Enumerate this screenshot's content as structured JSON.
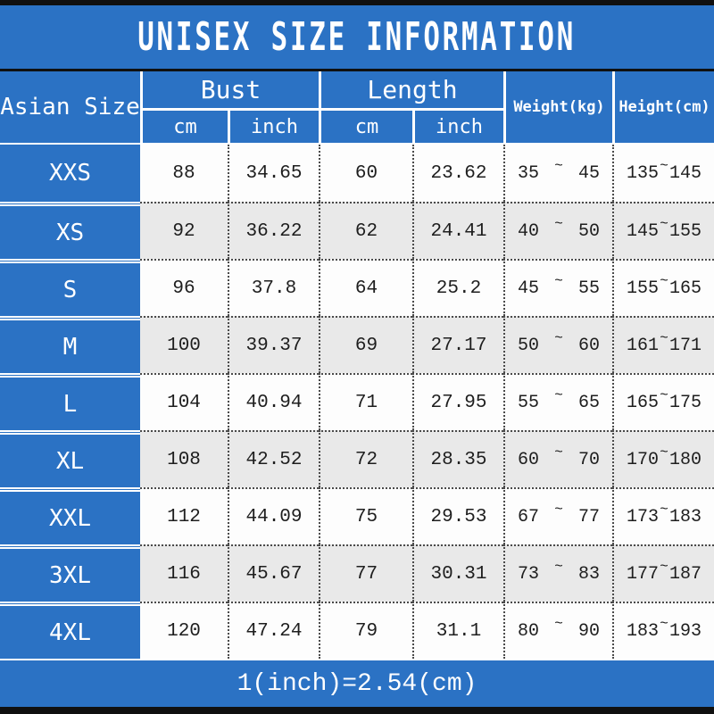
{
  "title": "UNISEX SIZE INFORMATION",
  "footer": {
    "conversion_note": "1(inch)=2.54(cm)"
  },
  "colors": {
    "banner_blue": "#2b72c4",
    "row_alt_gray": "#e9e9e9",
    "stripe_black": "#101010",
    "text_white": "#ffffff",
    "text_dark": "#1e1e1e"
  },
  "table": {
    "tilde": "~",
    "headers": {
      "size_column": "Asian Size",
      "bust_group": "Bust",
      "length_group": "Length",
      "bust_cm": "cm",
      "bust_inch": "inch",
      "length_cm": "cm",
      "length_inch": "inch",
      "weight": "Weight(kg)",
      "height": "Height(cm)"
    },
    "rows": [
      {
        "size": "XXS",
        "bust_cm": "88",
        "bust_inch": "34.65",
        "length_cm": "60",
        "length_inch": "23.62",
        "weight_min": "35",
        "weight_max": "45",
        "height_min": "135",
        "height_max": "145"
      },
      {
        "size": "XS",
        "bust_cm": "92",
        "bust_inch": "36.22",
        "length_cm": "62",
        "length_inch": "24.41",
        "weight_min": "40",
        "weight_max": "50",
        "height_min": "145",
        "height_max": "155"
      },
      {
        "size": "S",
        "bust_cm": "96",
        "bust_inch": "37.8",
        "length_cm": "64",
        "length_inch": "25.2",
        "weight_min": "45",
        "weight_max": "55",
        "height_min": "155",
        "height_max": "165"
      },
      {
        "size": "M",
        "bust_cm": "100",
        "bust_inch": "39.37",
        "length_cm": "69",
        "length_inch": "27.17",
        "weight_min": "50",
        "weight_max": "60",
        "height_min": "161",
        "height_max": "171"
      },
      {
        "size": "L",
        "bust_cm": "104",
        "bust_inch": "40.94",
        "length_cm": "71",
        "length_inch": "27.95",
        "weight_min": "55",
        "weight_max": "65",
        "height_min": "165",
        "height_max": "175"
      },
      {
        "size": "XL",
        "bust_cm": "108",
        "bust_inch": "42.52",
        "length_cm": "72",
        "length_inch": "28.35",
        "weight_min": "60",
        "weight_max": "70",
        "height_min": "170",
        "height_max": "180"
      },
      {
        "size": "XXL",
        "bust_cm": "112",
        "bust_inch": "44.09",
        "length_cm": "75",
        "length_inch": "29.53",
        "weight_min": "67",
        "weight_max": "77",
        "height_min": "173",
        "height_max": "183"
      },
      {
        "size": "3XL",
        "bust_cm": "116",
        "bust_inch": "45.67",
        "length_cm": "77",
        "length_inch": "30.31",
        "weight_min": "73",
        "weight_max": "83",
        "height_min": "177",
        "height_max": "187"
      },
      {
        "size": "4XL",
        "bust_cm": "120",
        "bust_inch": "47.24",
        "length_cm": "79",
        "length_inch": "31.1",
        "weight_min": "80",
        "weight_max": "90",
        "height_min": "183",
        "height_max": "193"
      }
    ]
  }
}
